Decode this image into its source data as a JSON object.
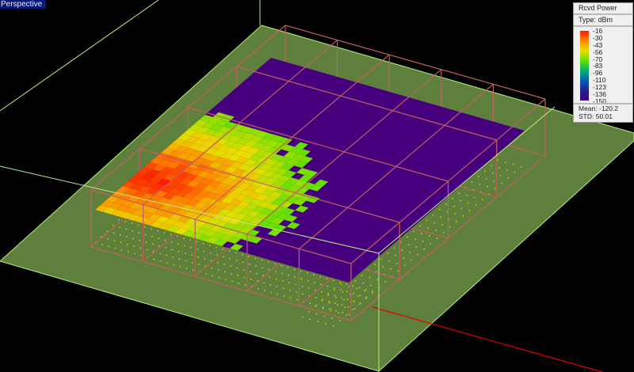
{
  "viewport": {
    "label": "Perspective"
  },
  "legend": {
    "title": "Rcvd Power",
    "type": "Type: dBm",
    "ticks": [
      "-16",
      "-30",
      "-43",
      "-56",
      "-70",
      "-83",
      "-96",
      "-110",
      "-123",
      "-136",
      "-150"
    ],
    "mean": "Mean: -120.2",
    "std": "STD: 50.01"
  },
  "colors": {
    "ground": "#5e803c",
    "floor": "#46007e",
    "wireframe": "#c06060",
    "axis_green": "#b8f080",
    "axis_red": "#e00000",
    "receiver_points": "#e0d000"
  }
}
